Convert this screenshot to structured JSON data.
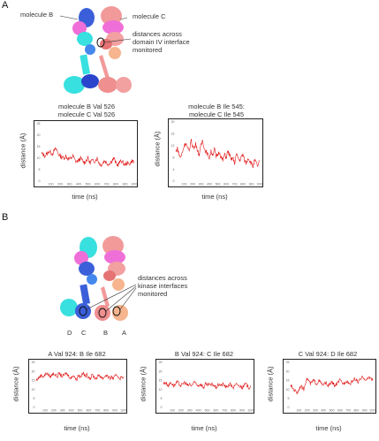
{
  "panel_a": {
    "letter": "A",
    "molecule_b_label": "molecule B",
    "molecule_c_label": "molecule C",
    "annotation": [
      "distances across",
      "domain IV interface",
      "monitored"
    ]
  },
  "panel_b": {
    "letter": "B",
    "annotation": [
      "distances across",
      "kinase interfaces",
      "monitored"
    ],
    "chain_labels": [
      "D",
      "C",
      "B",
      "A"
    ]
  },
  "chart_data": [
    {
      "type": "line",
      "title": [
        "molecule B Val 526",
        "molecule C Val 526"
      ],
      "xlabel": "time (ns)",
      "ylabel": "distance (Å)",
      "xlim": [
        0,
        1000
      ],
      "ylim": [
        0,
        25
      ],
      "xticks": [
        "100",
        "200",
        "300",
        "400",
        "500",
        "600",
        "700",
        "800",
        "900",
        "1000"
      ],
      "yticks": [
        "0",
        "5",
        "10",
        "15",
        "20",
        "25"
      ],
      "series": [
        {
          "values": [
            12,
            11.5,
            11,
            12,
            13,
            12.5,
            12,
            13.5,
            14,
            12,
            11,
            10.5,
            10,
            11,
            10,
            9.5,
            10,
            11,
            9,
            8.5,
            9,
            10,
            9,
            8,
            9,
            10,
            8,
            9,
            8.5,
            9,
            10,
            8,
            7,
            8,
            9,
            8,
            7.5,
            8,
            9,
            10,
            8,
            7,
            8,
            9,
            8,
            7,
            8,
            7.5,
            8,
            9,
            8
          ]
        }
      ]
    },
    {
      "type": "line",
      "title": [
        "molecule B Ile 545:",
        "molecule C Ile 545"
      ],
      "xlabel": "time (ns)",
      "ylabel": "distance (Å)",
      "xlim": [
        0,
        1000
      ],
      "ylim": [
        0,
        20
      ],
      "xticks": [
        "100",
        "200",
        "300",
        "400",
        "500",
        "600",
        "700",
        "800",
        "900",
        "1000"
      ],
      "yticks": [
        "0",
        "4",
        "8",
        "12",
        "16",
        "20"
      ],
      "series": [
        {
          "values": [
            10,
            11,
            9,
            8,
            10,
            12,
            13,
            11,
            10,
            14,
            12,
            11,
            13,
            10,
            9,
            12,
            14,
            11,
            10,
            9,
            8,
            10,
            9,
            11,
            8,
            9,
            10,
            8,
            7,
            9,
            8,
            10,
            9,
            7,
            8,
            6,
            9,
            8,
            7,
            8,
            9,
            7,
            6,
            8,
            7,
            6,
            5,
            7,
            6,
            5,
            7
          ]
        }
      ]
    },
    {
      "type": "line",
      "title": [
        "A Val 924: B Ile 682"
      ],
      "xlabel": "time (ns)",
      "ylabel": "distance (Å)",
      "xlim": [
        0,
        1000
      ],
      "ylim": [
        0,
        25
      ],
      "xticks": [
        "100",
        "200",
        "300",
        "400",
        "500",
        "600",
        "700",
        "800",
        "900",
        "1000"
      ],
      "yticks": [
        "0",
        "5",
        "10",
        "15",
        "20",
        "25"
      ],
      "series": [
        {
          "values": [
            15,
            16,
            17,
            18,
            17,
            18,
            19,
            18,
            17,
            18,
            19,
            18,
            17,
            19,
            18,
            17,
            18,
            19,
            18,
            17,
            16,
            18,
            17,
            15,
            18,
            17,
            18,
            19,
            17,
            18,
            17,
            16,
            18,
            17,
            16,
            17,
            18,
            17,
            16,
            17,
            18,
            17,
            16,
            17,
            16,
            17,
            18,
            17,
            16,
            17,
            17
          ]
        }
      ]
    },
    {
      "type": "line",
      "title": [
        "B Val 924: C Ile 682"
      ],
      "xlabel": "time (ns)",
      "ylabel": "distance (Å)",
      "xlim": [
        0,
        1000
      ],
      "ylim": [
        0,
        25
      ],
      "xticks": [
        "100",
        "200",
        "300",
        "400",
        "500",
        "600",
        "700",
        "800",
        "900",
        "1000"
      ],
      "yticks": [
        "0",
        "5",
        "10",
        "15",
        "20",
        "25"
      ],
      "series": [
        {
          "values": [
            13,
            14,
            13,
            12,
            14,
            13,
            12,
            13,
            14,
            13,
            12,
            13,
            14,
            13,
            12,
            13,
            12,
            13,
            14,
            13,
            12,
            13,
            12,
            11,
            13,
            12,
            13,
            12,
            13,
            12,
            11,
            12,
            13,
            12,
            13,
            12,
            11,
            12,
            13,
            12,
            11,
            12,
            13,
            12,
            12,
            11,
            12,
            13,
            12,
            11,
            12
          ]
        }
      ]
    },
    {
      "type": "line",
      "title": [
        "C Val 924: D Ile 682"
      ],
      "xlabel": "time (ns)",
      "ylabel": "distance (Å)",
      "xlim": [
        0,
        1000
      ],
      "ylim": [
        0,
        25
      ],
      "xticks": [
        "100",
        "200",
        "300",
        "400",
        "500",
        "600",
        "700",
        "800",
        "900",
        "1000"
      ],
      "yticks": [
        "0",
        "5",
        "10",
        "15",
        "20",
        "25"
      ],
      "series": [
        {
          "values": [
            12,
            11,
            10,
            9,
            8,
            10,
            12,
            11,
            10,
            14,
            16,
            15,
            13,
            14,
            15,
            14,
            13,
            15,
            14,
            13,
            12,
            14,
            13,
            12,
            13,
            14,
            13,
            12,
            13,
            14,
            15,
            14,
            13,
            14,
            15,
            14,
            13,
            14,
            15,
            16,
            15,
            14,
            15,
            16,
            17,
            16,
            15,
            16,
            17,
            16,
            15
          ]
        }
      ]
    }
  ]
}
